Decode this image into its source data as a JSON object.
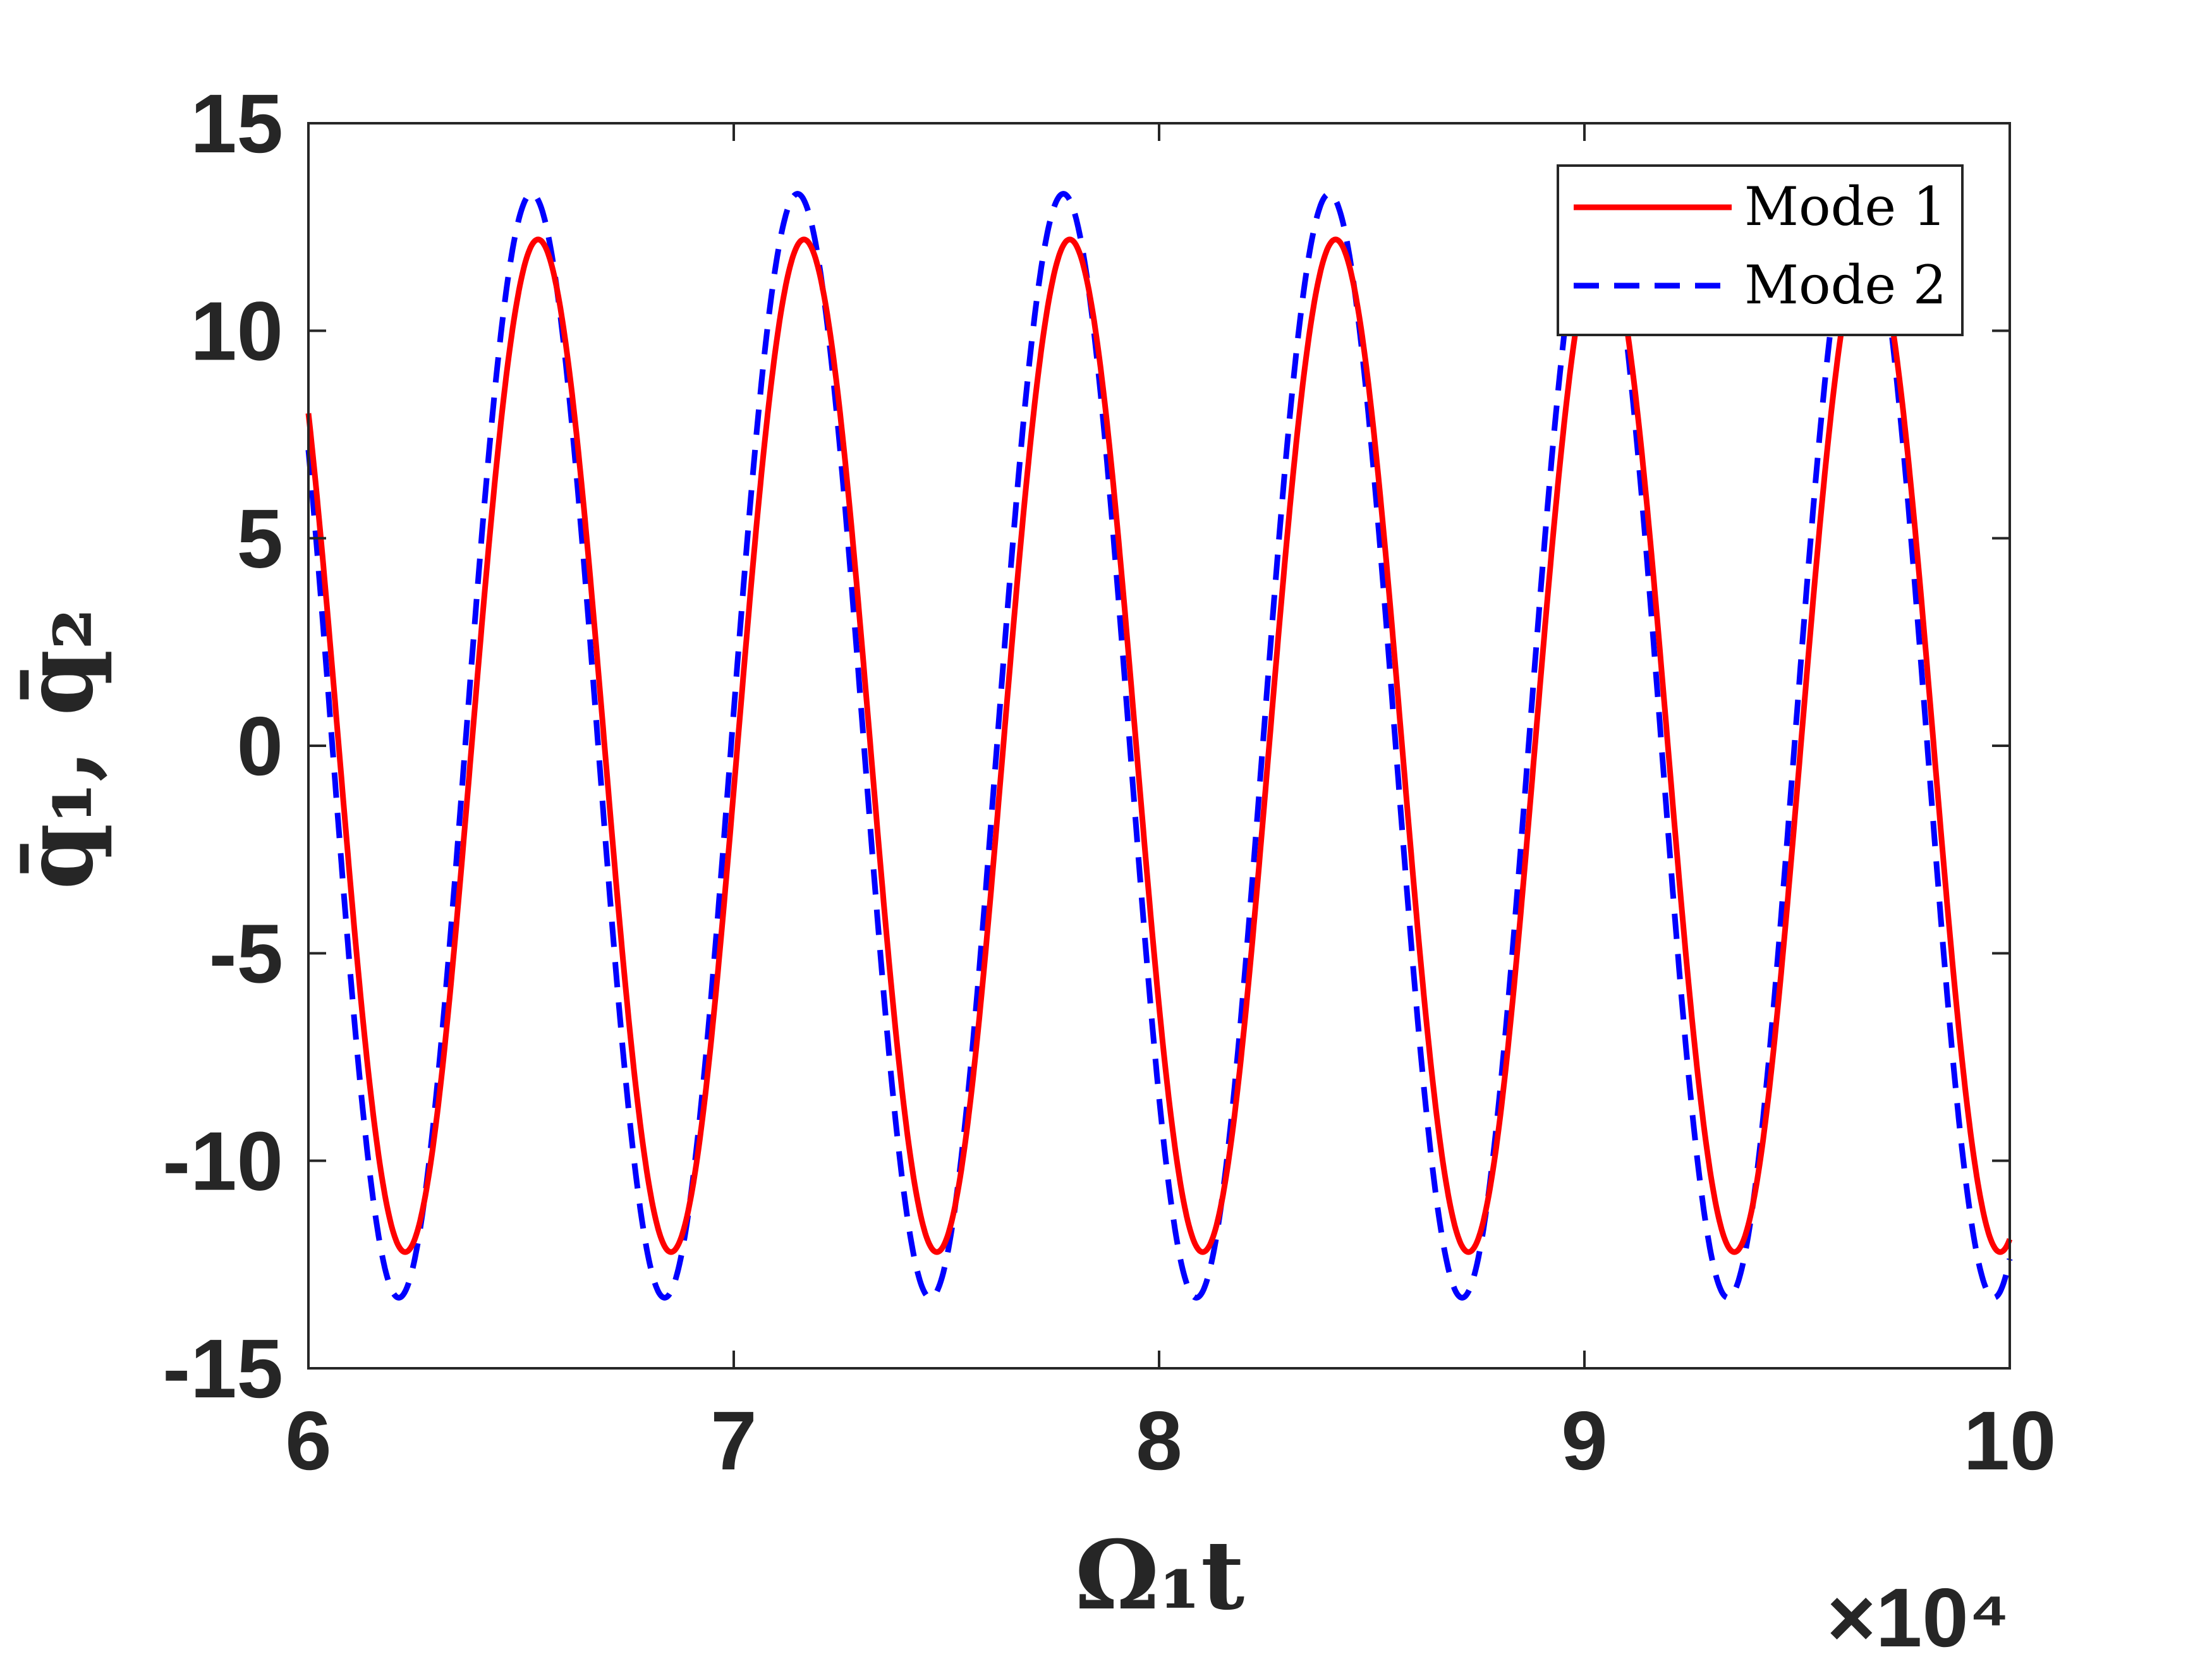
{
  "chart_data": {
    "type": "line",
    "title": "",
    "xlabel": "Ω₁t",
    "ylabel": "q̄₁, q̄₂",
    "x_exponent_label": "×10⁴",
    "xlim": [
      60000,
      100000
    ],
    "ylim": [
      -15,
      15
    ],
    "xticks": [
      60000,
      70000,
      80000,
      90000,
      100000
    ],
    "xtick_labels": [
      "6",
      "7",
      "8",
      "9",
      "10"
    ],
    "yticks": [
      15,
      10,
      5,
      0,
      -5,
      -10,
      -15
    ],
    "ytick_labels": [
      "15",
      "10",
      "5",
      "0",
      "-5",
      "-10",
      "-15"
    ],
    "grid": false,
    "legend_position": "top-right",
    "series": [
      {
        "name": "Mode 1",
        "color": "#ff0000",
        "style": "solid",
        "model": "sinusoid",
        "amplitude": 12.2,
        "period": 6250,
        "peak_x": 65400
      },
      {
        "name": "Mode 2",
        "color": "#0000ff",
        "style": "dashed",
        "model": "sinusoid",
        "amplitude": 13.3,
        "period": 6250,
        "peak_x": 65250
      }
    ]
  }
}
